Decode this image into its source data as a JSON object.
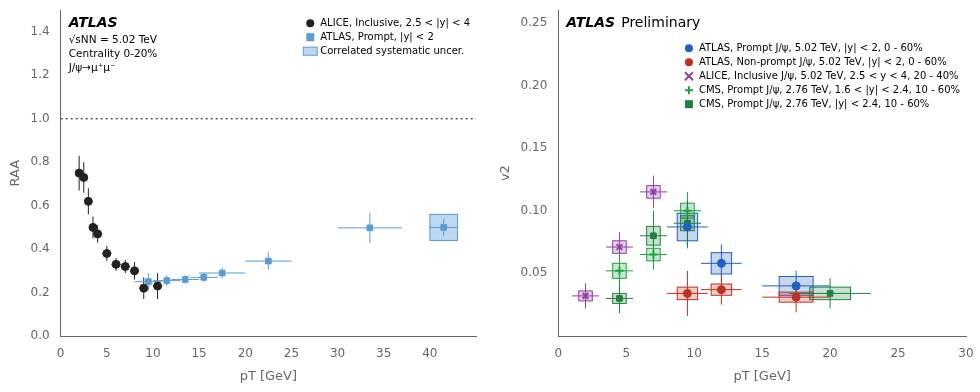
{
  "chart_data": [
    {
      "type": "scatter",
      "title": "ATLAS",
      "annotations": [
        "√sNN = 5.02 TeV",
        "Centrality 0-20%",
        "J/ψ→μ⁺μ⁻"
      ],
      "xlabel": "pT [GeV]",
      "ylabel": "RAA",
      "xlim": [
        0,
        45
      ],
      "ylim": [
        0,
        1.5
      ],
      "xticks": [
        0,
        5,
        10,
        15,
        20,
        25,
        30,
        35,
        40
      ],
      "yticks": [
        {
          "value": 0,
          "label": "0.0"
        },
        0.2,
        0.4,
        0.6,
        0.8,
        {
          "value": 1.0,
          "label": "1.0"
        },
        1.2,
        1.4
      ],
      "grid": false,
      "legend": "upper right",
      "reference_line": 1.0,
      "series": [
        {
          "name": "ALICE, Inclusive, 2.5 < |y| < 4",
          "color": "#222222",
          "marker": "circle",
          "x": [
            2.0,
            2.5,
            3.0,
            3.5,
            4.0,
            5.0,
            6.0,
            7.0,
            8.0,
            9.0,
            10.5
          ],
          "y": [
            0.75,
            0.73,
            0.62,
            0.5,
            0.47,
            0.38,
            0.33,
            0.32,
            0.3,
            0.22,
            0.23
          ],
          "xerr": [
            0.3,
            0.3,
            0.3,
            0.3,
            0.5,
            0.5,
            0.5,
            0.5,
            0.5,
            0.5,
            0.5
          ],
          "yerr": [
            0.08,
            0.07,
            0.06,
            0.05,
            0.04,
            0.035,
            0.03,
            0.03,
            0.04,
            0.05,
            0.06
          ]
        },
        {
          "name": "ATLAS, Prompt, |y| < 2",
          "color": "#5b9bd5",
          "marker": "square",
          "x": [
            9.5,
            11.5,
            13.5,
            15.5,
            17.5,
            22.5,
            33.5,
            41.5
          ],
          "y": [
            0.25,
            0.255,
            0.26,
            0.27,
            0.29,
            0.345,
            0.498,
            0.5
          ],
          "xerr": [
            1.5,
            1.5,
            1.5,
            1.5,
            2.5,
            2.5,
            3.5,
            1.5
          ],
          "yerr": [
            0.04,
            0.025,
            0.02,
            0.02,
            0.025,
            0.04,
            0.07,
            0.04
          ]
        }
      ],
      "systematic_boxes": [
        {
          "name": "Correlated systematic uncer.",
          "color": "#5b9bd5",
          "x": 41.5,
          "y": 0.5,
          "width": 3.0,
          "height": 0.12
        }
      ]
    },
    {
      "type": "scatter",
      "title": "ATLAS",
      "subtitle": "Preliminary",
      "xlabel": "pT [GeV]",
      "ylabel": "v2",
      "xlim": [
        0,
        30
      ],
      "ylim": [
        0,
        0.26
      ],
      "xticks": [
        0,
        5,
        10,
        15,
        20,
        25,
        30
      ],
      "yticks": [
        0.05,
        {
          "value": 0.1,
          "label": "0.10"
        },
        0.15,
        {
          "value": 0.2,
          "label": "0.20"
        },
        0.25
      ],
      "grid": false,
      "legend": "upper right",
      "series": [
        {
          "name": "ATLAS, Prompt J/ψ, 5.02 TeV, |y| < 2, 0 - 60%",
          "color": "#2060c0",
          "marker": "circle",
          "x": [
            9.5,
            12.0,
            17.5
          ],
          "y": [
            0.087,
            0.058,
            0.04
          ],
          "xerr": [
            1.5,
            1.5,
            2.5
          ],
          "yerr": [
            0.017,
            0.015,
            0.012
          ],
          "syst_height": [
            0.022,
            0.017,
            0.015
          ],
          "syst_width": [
            1.5,
            1.5,
            2.5
          ]
        },
        {
          "name": "ATLAS, Non-prompt J/ψ, 5.02 TeV, |y| < 2, 0 - 60%",
          "color": "#c03020",
          "marker": "circle",
          "x": [
            9.5,
            12.0,
            17.5
          ],
          "y": [
            0.034,
            0.037,
            0.031
          ],
          "xerr": [
            1.5,
            1.5,
            2.5
          ],
          "yerr": [
            0.018,
            0.012,
            0.012
          ],
          "syst_height": [
            0.01,
            0.009,
            0.008
          ],
          "syst_width": [
            1.5,
            1.5,
            2.5
          ]
        },
        {
          "name": "ALICE, Inclusive J/ψ, 5.02 TeV, 2.5 < y < 4, 20 - 40%",
          "color": "#9040a0",
          "marker": "x",
          "x": [
            2.0,
            4.5,
            7.0
          ],
          "y": [
            0.032,
            0.071,
            0.115
          ],
          "xerr": [
            1.0,
            1.0,
            1.0
          ],
          "yerr": [
            0.01,
            0.012,
            0.013
          ],
          "syst_height": [
            0.008,
            0.01,
            0.01
          ],
          "syst_width": [
            1.0,
            1.0,
            1.0
          ]
        },
        {
          "name": "CMS, Prompt J/ψ, 2.76 TeV, 1.6 < |y| < 2.4, 10 - 60%",
          "color": "#20a040",
          "marker": "plus",
          "x": [
            4.5,
            7.0,
            9.5
          ],
          "y": [
            0.052,
            0.065,
            0.1
          ],
          "xerr": [
            1.0,
            1.0,
            1.0
          ],
          "yerr": [
            0.015,
            0.012,
            0.015
          ],
          "syst_height": [
            0.012,
            0.01,
            0.012
          ],
          "syst_width": [
            1.0,
            1.0,
            1.0
          ]
        },
        {
          "name": "CMS, Prompt J/ψ, 2.76 TeV, |y| < 2.4, 10 - 60%",
          "color": "#208040",
          "marker": "square",
          "x": [
            4.5,
            7.0,
            9.5,
            20.0
          ],
          "y": [
            0.03,
            0.08,
            0.09,
            0.034
          ],
          "xerr": [
            1.0,
            1.0,
            1.0,
            3.0
          ],
          "yerr": [
            0.012,
            0.02,
            0.018,
            0.012
          ],
          "syst_height": [
            0.008,
            0.015,
            0.012,
            0.01
          ],
          "syst_width": [
            1.0,
            1.0,
            1.0,
            3.0
          ]
        }
      ]
    }
  ]
}
